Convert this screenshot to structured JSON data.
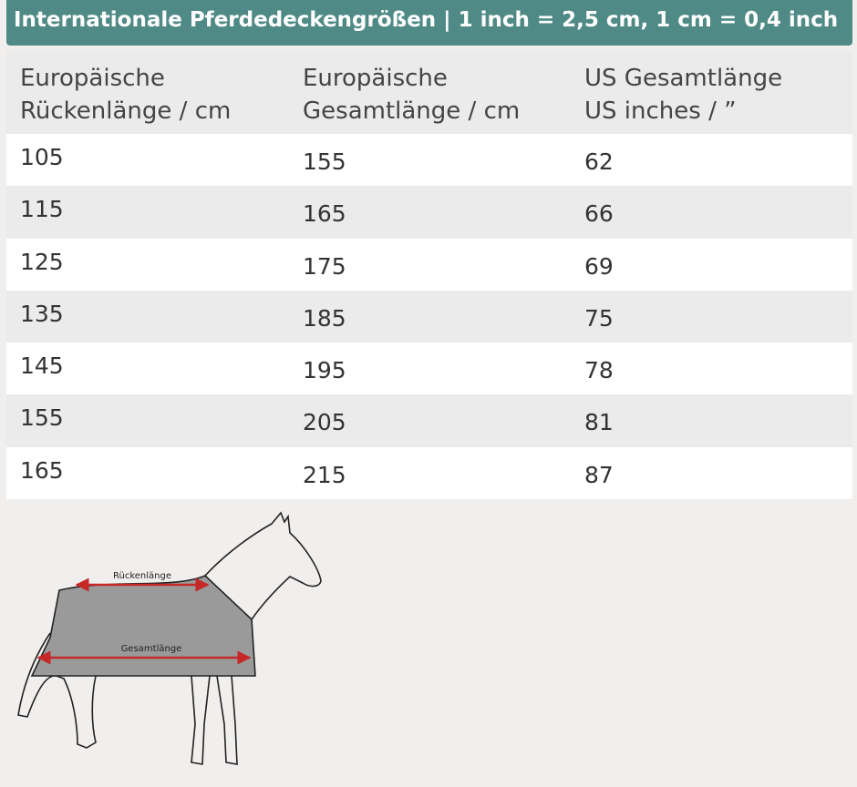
{
  "header": {
    "title": "Internationale Pferdedeckengrößen | 1 inch = 2,5 cm, 1 cm = 0,4 inch"
  },
  "table": {
    "columns": [
      [
        "Europäische",
        "Rückenlänge / cm"
      ],
      [
        "Europäische",
        "Gesamtlänge / cm"
      ],
      [
        "US Gesamtlänge",
        "US inches / ”"
      ]
    ],
    "rows": [
      [
        105,
        155,
        62
      ],
      [
        115,
        165,
        66
      ],
      [
        125,
        175,
        69
      ],
      [
        135,
        185,
        75
      ],
      [
        145,
        195,
        78
      ],
      [
        155,
        205,
        81
      ],
      [
        165,
        215,
        87
      ]
    ]
  },
  "diagram": {
    "labels": [
      "Rückenlänge",
      "Gesamtlänge"
    ]
  }
}
